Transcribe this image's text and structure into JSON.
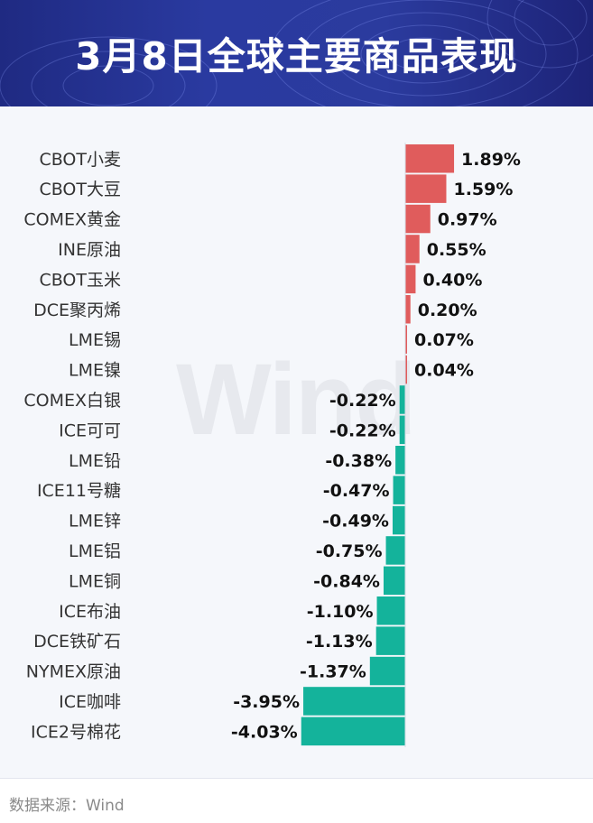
{
  "header": {
    "title": "3月8日全球主要商品表现"
  },
  "source": "数据来源：Wind",
  "watermark": "Wind",
  "colors": {
    "positive": "#e05c5c",
    "negative": "#14b39b",
    "header_bg": "#25318f",
    "panel_bg": "#f5f7fb"
  },
  "chart_data": {
    "type": "bar",
    "orientation": "horizontal",
    "title": "3月8日全球主要商品表现",
    "xlabel": "",
    "ylabel": "",
    "unit": "%",
    "categories": [
      "CBOT小麦",
      "CBOT大豆",
      "COMEX黄金",
      "INE原油",
      "CBOT玉米",
      "DCE聚丙烯",
      "LME锡",
      "LME镍",
      "COMEX白银",
      "ICE可可",
      "LME铅",
      "ICE11号糖",
      "LME锌",
      "LME铝",
      "LME铜",
      "ICE布油",
      "DCE铁矿石",
      "NYMEX原油",
      "ICE咖啡",
      "ICE2号棉花"
    ],
    "values": [
      1.89,
      1.59,
      0.97,
      0.55,
      0.4,
      0.2,
      0.07,
      0.04,
      -0.22,
      -0.22,
      -0.38,
      -0.47,
      -0.49,
      -0.75,
      -0.84,
      -1.1,
      -1.13,
      -1.37,
      -3.95,
      -4.03
    ],
    "labels": [
      "1.89%",
      "1.59%",
      "0.97%",
      "0.55%",
      "0.40%",
      "0.20%",
      "0.07%",
      "0.04%",
      "-0.22%",
      "-0.22%",
      "-0.38%",
      "-0.47%",
      "-0.49%",
      "-0.75%",
      "-0.84%",
      "-1.10%",
      "-1.13%",
      "-1.37%",
      "-3.95%",
      "-4.03%"
    ],
    "xlim": [
      -4.03,
      1.89
    ],
    "grid": false,
    "legend": "none"
  }
}
